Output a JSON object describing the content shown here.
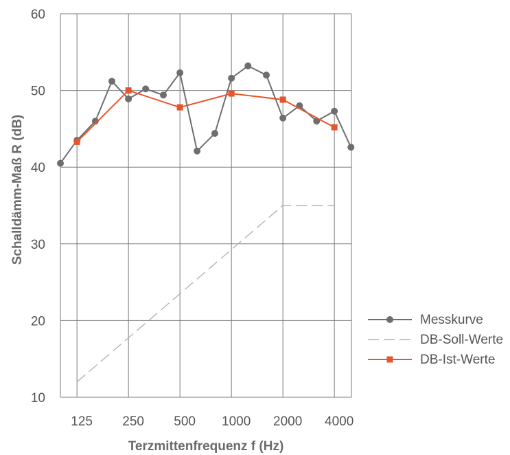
{
  "chart_data": {
    "type": "line",
    "xlabel": "Terzmittenfrequenz f (Hz)",
    "ylabel": "Schalldämm-Maß R (dB)",
    "ylim": [
      10,
      60
    ],
    "yticks": [
      10,
      20,
      30,
      40,
      50,
      60
    ],
    "x_scale": "log (third-octave bands)",
    "xlim": [
      100,
      5000
    ],
    "xticks": [
      125,
      250,
      500,
      1000,
      2000,
      4000
    ],
    "xtick_labels": [
      "125",
      "250",
      "500",
      "1000",
      "2000",
      "4000"
    ],
    "grid": true,
    "legend_position": "right",
    "series": [
      {
        "name": "Messkurve",
        "color": "#6e6e6e",
        "marker": "circle",
        "line_style": "solid",
        "x": [
          100,
          125,
          160,
          200,
          250,
          315,
          400,
          500,
          630,
          800,
          1000,
          1250,
          1600,
          2000,
          2500,
          3150,
          4000,
          5000
        ],
        "y": [
          40.5,
          43.5,
          46.0,
          51.2,
          48.9,
          50.2,
          49.4,
          52.3,
          42.1,
          44.4,
          51.6,
          53.2,
          52.0,
          46.4,
          48.0,
          46.0,
          47.3,
          42.6
        ]
      },
      {
        "name": "DB-Soll-Werte",
        "color": "#b4b4b4",
        "marker": "none",
        "line_style": "dashed",
        "x": [
          125,
          2000,
          4000
        ],
        "y": [
          12.0,
          35.0,
          35.0
        ]
      },
      {
        "name": "DB-Ist-Werte",
        "color": "#e8542b",
        "marker": "square",
        "line_style": "solid",
        "x": [
          125,
          250,
          500,
          1000,
          2000,
          4000
        ],
        "y": [
          43.3,
          50.0,
          47.8,
          49.6,
          48.8,
          45.2
        ]
      }
    ]
  }
}
